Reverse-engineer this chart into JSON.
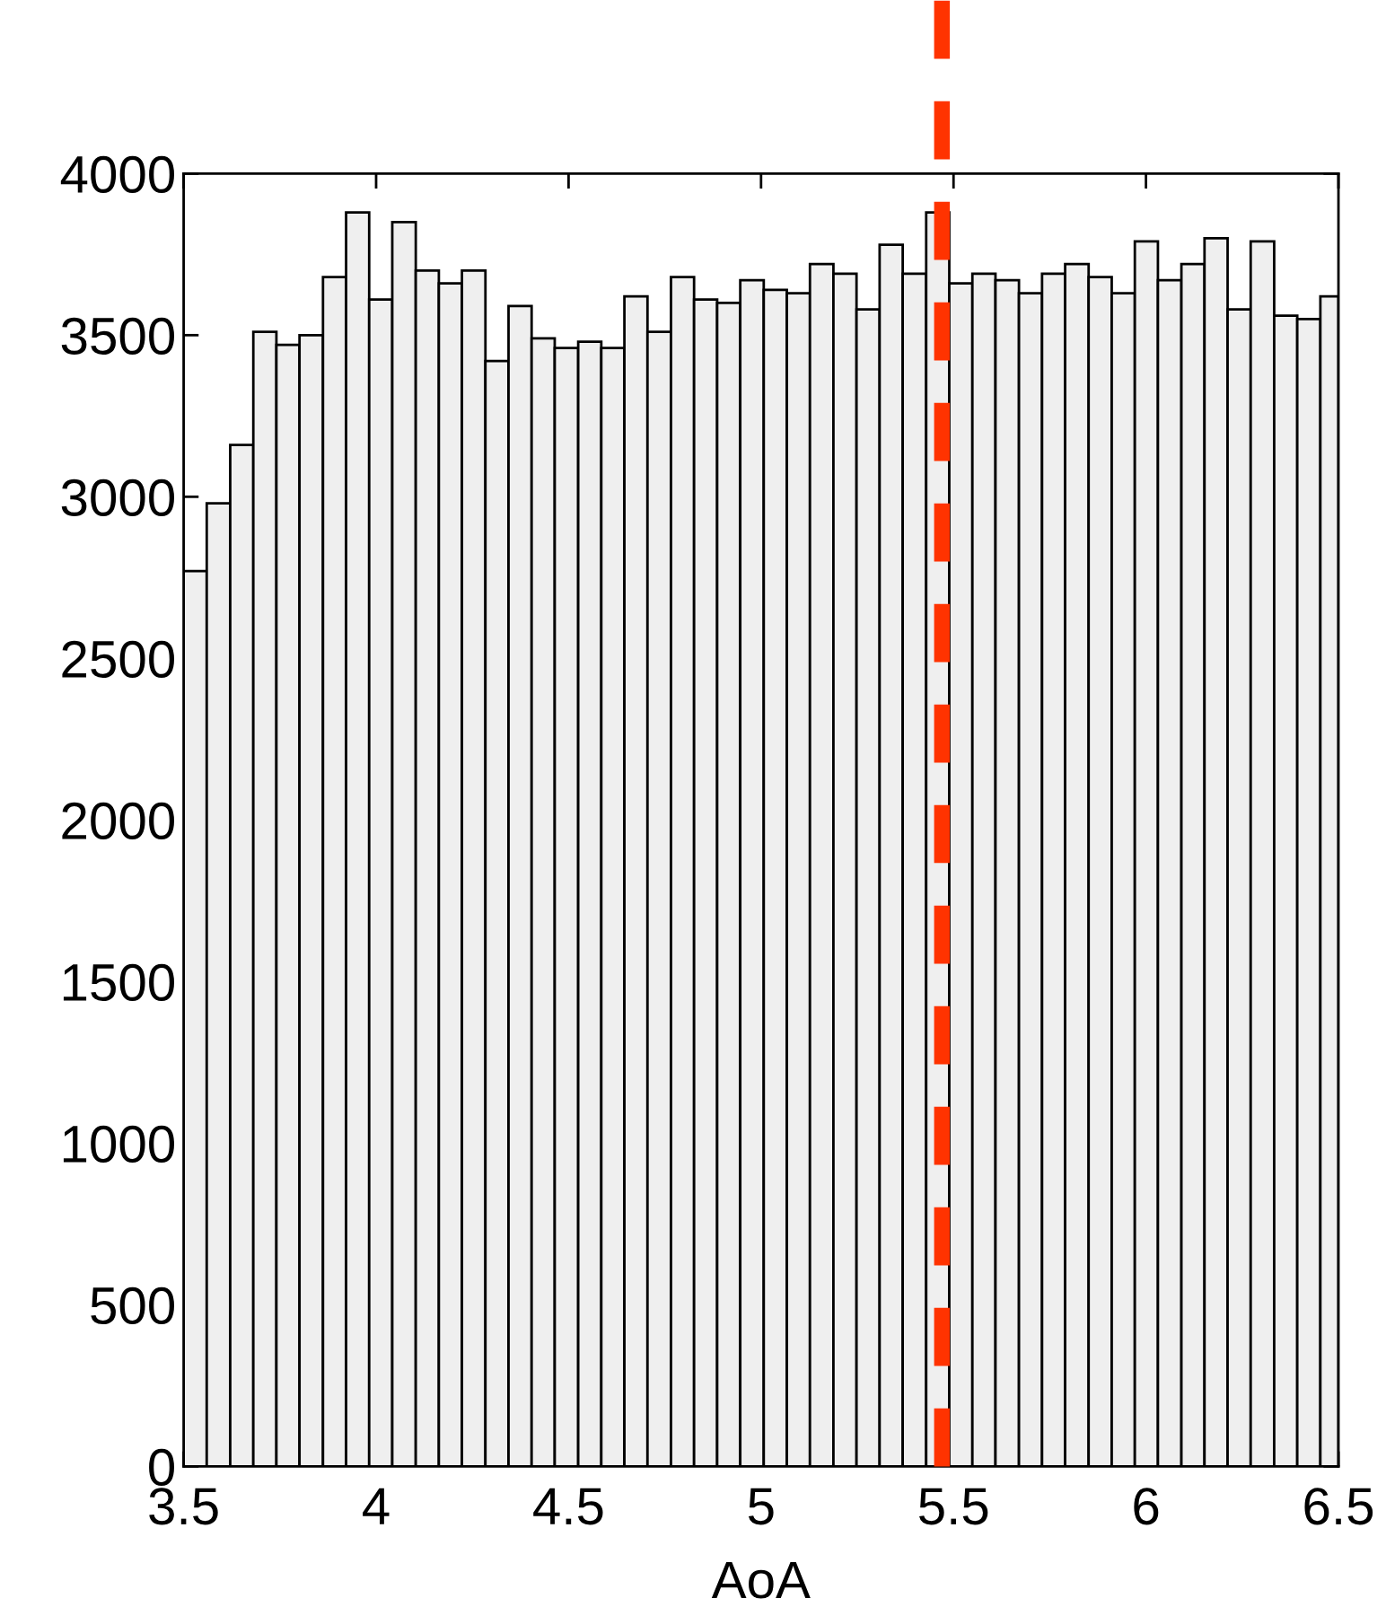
{
  "chart_data": {
    "type": "histogram",
    "xlabel": "AoA",
    "bins": [
      3.5,
      3.56,
      3.621,
      3.681,
      3.741,
      3.801,
      3.862,
      3.922,
      3.982,
      4.042,
      4.103,
      4.163,
      4.223,
      4.284,
      4.344,
      4.404,
      4.464,
      4.525,
      4.585,
      4.645,
      4.705,
      4.766,
      4.826,
      4.886,
      4.946,
      5.007,
      5.067,
      5.127,
      5.188,
      5.248,
      5.308,
      5.368,
      5.429,
      5.489,
      5.549,
      5.609,
      5.67,
      5.73,
      5.79,
      5.851,
      5.911,
      5.971,
      6.031,
      6.092,
      6.152,
      6.212,
      6.272,
      6.333,
      6.393,
      6.453,
      6.5
    ],
    "values": [
      2770,
      2980,
      3160,
      3510,
      3470,
      3500,
      3680,
      3880,
      3610,
      3850,
      3700,
      3660,
      3700,
      3420,
      3590,
      3490,
      3460,
      3480,
      3460,
      3620,
      3510,
      3680,
      3610,
      3600,
      3670,
      3640,
      3630,
      3720,
      3690,
      3580,
      3780,
      3690,
      3880,
      3660,
      3690,
      3670,
      3630,
      3690,
      3720,
      3680,
      3630,
      3790,
      3670,
      3720,
      3800,
      3580,
      3790,
      3560,
      3550,
      3620
    ],
    "color": "#efefef",
    "xlim": [
      3.5,
      6.5
    ],
    "xticks": [
      3.5,
      4,
      4.5,
      5,
      5.5,
      6,
      6.5
    ],
    "ylim": [
      0,
      4000
    ],
    "yticks": [
      0,
      500,
      1000,
      1500,
      2000,
      2500,
      3000,
      3500,
      4000
    ],
    "ref_lines": [
      {
        "axis": "x",
        "value": 5.47,
        "color": "#ff3300",
        "line_style": "dashed"
      }
    ]
  }
}
